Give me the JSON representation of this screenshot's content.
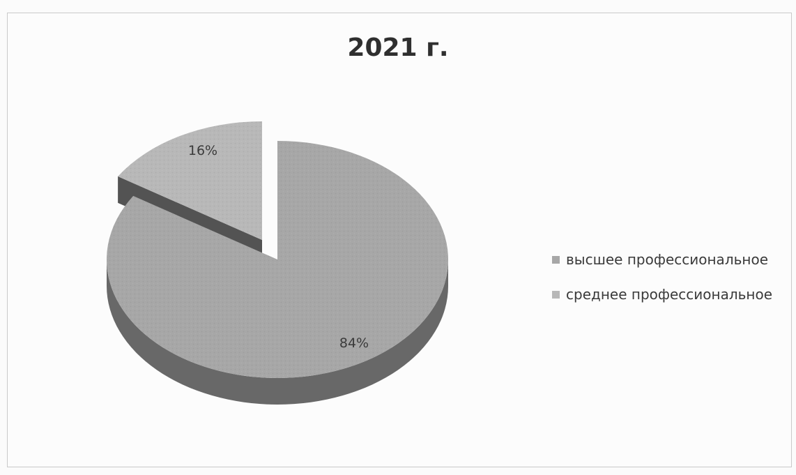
{
  "chart_data": {
    "type": "pie",
    "title": "2021 г.",
    "series": [
      {
        "name": "высшее профессиональное",
        "value": 84,
        "label": "84%",
        "color": "#a7a7a7"
      },
      {
        "name": "среднее профессиональное",
        "value": 16,
        "label": "16%",
        "color": "#b8b8b8"
      }
    ],
    "legend_position": "right",
    "three_d": true,
    "exploded": true
  }
}
